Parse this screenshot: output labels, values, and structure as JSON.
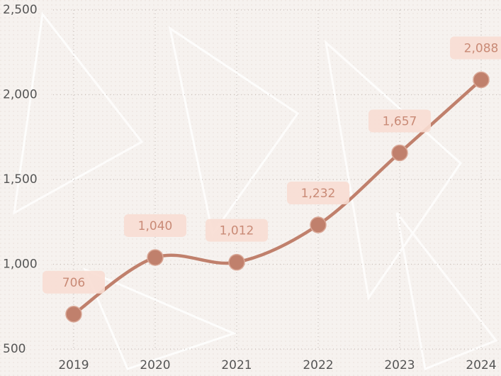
{
  "chart_data": {
    "type": "line",
    "categories": [
      "2019",
      "2020",
      "2021",
      "2022",
      "2023",
      "2024"
    ],
    "values": [
      706,
      1040,
      1012,
      1232,
      1657,
      2088
    ],
    "value_labels": [
      "706",
      "1,040",
      "1,012",
      "1,232",
      "1,657",
      "2,088"
    ],
    "color": "#c0806c",
    "ylim": [
      500,
      2500
    ],
    "yticks": [
      500,
      {
        "value": 1000,
        "label": "1,000"
      },
      {
        "value": 1500,
        "label": "1,500"
      },
      {
        "value": 2000,
        "label": "2,000"
      },
      {
        "value": 2500,
        "label": "2,500"
      }
    ],
    "grid": true
  }
}
